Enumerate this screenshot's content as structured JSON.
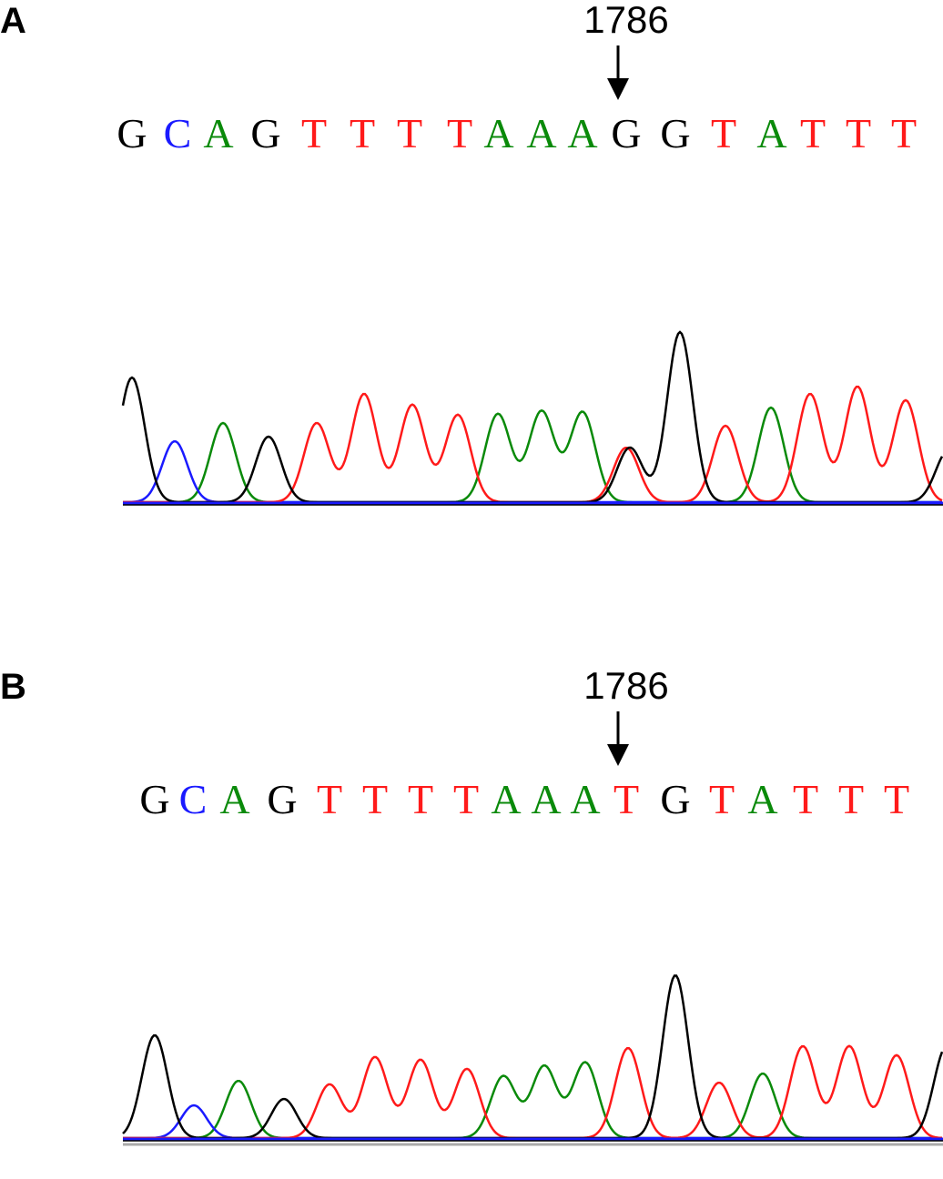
{
  "panels": [
    {
      "label": "A",
      "position": "1786",
      "bases": [
        "G",
        "C",
        "A",
        "G",
        "T",
        "T",
        "T",
        "T",
        "A",
        "A",
        "A",
        "G",
        "G",
        "T",
        "A",
        "T",
        "T",
        "T"
      ]
    },
    {
      "label": "B",
      "position": "1786",
      "bases": [
        "G",
        "C",
        "A",
        "G",
        "T",
        "T",
        "T",
        "T",
        "A",
        "A",
        "A",
        "T",
        "G",
        "T",
        "A",
        "T",
        "T",
        "T"
      ]
    }
  ],
  "base_colors": {
    "G": "#000000",
    "C": "#1a1aff",
    "A": "#0a8a0a",
    "T": "#ff1a1a"
  }
}
